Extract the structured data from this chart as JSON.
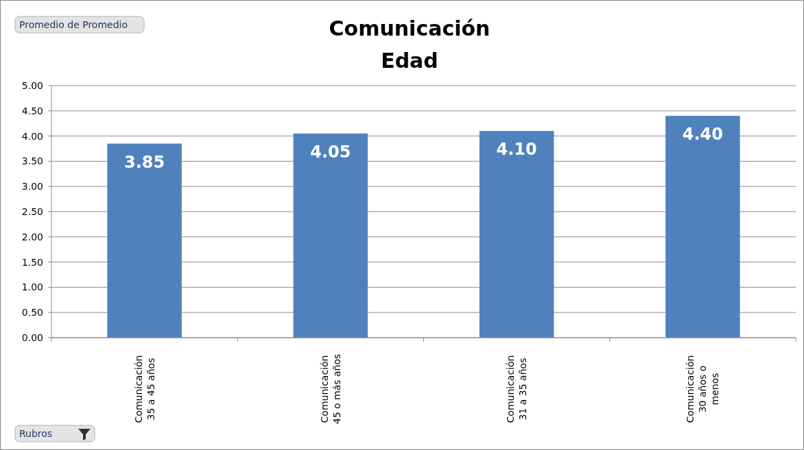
{
  "chart_data": {
    "type": "bar",
    "title": "Comunicación",
    "subtitle": "Edad",
    "categories": [
      "Comunicación\n35 a 45 años",
      "Comunicación\n45 o más años",
      "Comunicación\n31 a 35 años",
      "Comunicación\n30 años o\nmenos"
    ],
    "values": [
      3.85,
      4.05,
      4.1,
      4.4
    ],
    "value_labels": [
      "3.85",
      "4.05",
      "4.10",
      "4.40"
    ],
    "color": "#4f81bd",
    "ylim": [
      0,
      5
    ],
    "yticks": [
      {
        "value": 0,
        "label": "0.00"
      },
      {
        "value": 0.5,
        "label": "0.50"
      },
      {
        "value": 1,
        "label": "1.00"
      },
      {
        "value": 1.5,
        "label": "1.50"
      },
      {
        "value": 2,
        "label": "2.00"
      },
      {
        "value": 2.5,
        "label": "2.50"
      },
      {
        "value": 3,
        "label": "3.00"
      },
      {
        "value": 3.5,
        "label": "3.50"
      },
      {
        "value": 4,
        "label": "4.00"
      },
      {
        "value": 4.5,
        "label": "4.50"
      },
      {
        "value": 5,
        "label": "5.00"
      }
    ],
    "grid": "y",
    "annotations": [
      "Promedio de Promedio",
      "Rubros"
    ]
  }
}
